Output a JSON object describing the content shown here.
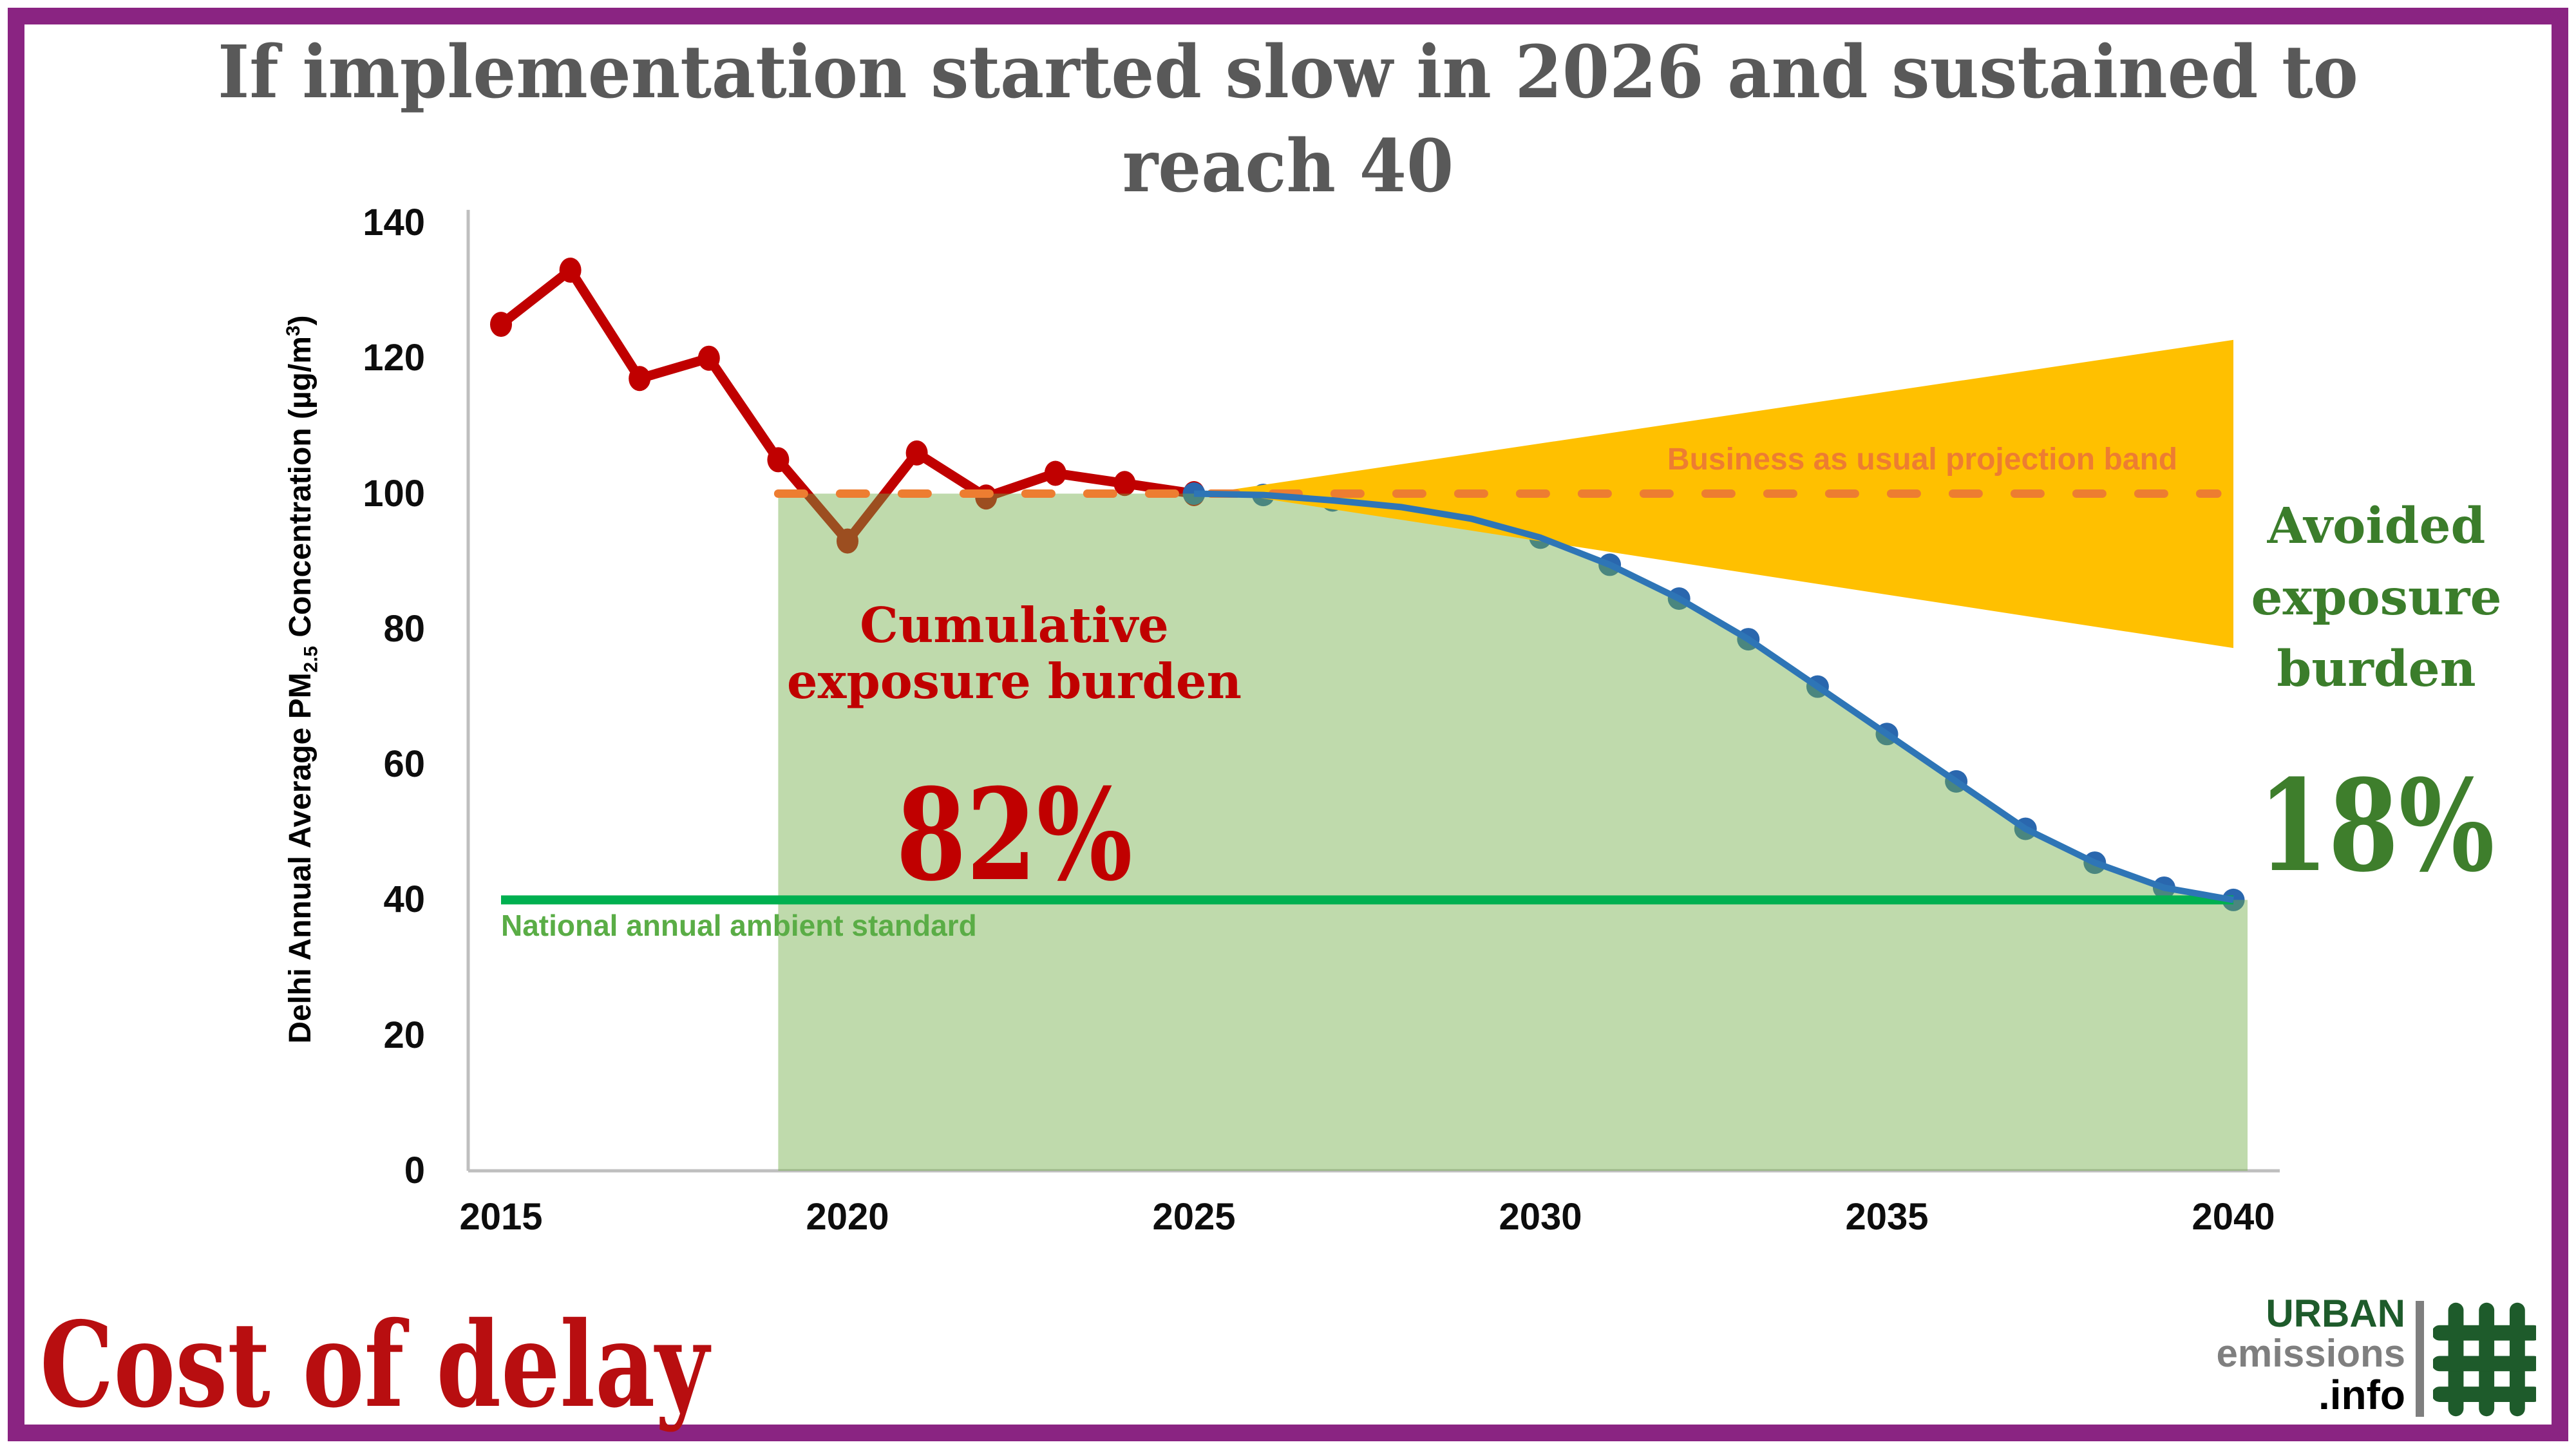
{
  "frame": {
    "border_color": "#8A2482"
  },
  "title": {
    "line1": "If implementation started slow in 2026 and sustained to",
    "line2": "reach 40",
    "color": "#595959"
  },
  "footer": {
    "caption": "Cost of delay",
    "caption_color": "#B80E10"
  },
  "logo": {
    "line1": "URBAN",
    "line2": "emissions",
    "line3": ".info",
    "text_colors": [
      "#1E5B2B",
      "#7F7F7F",
      "#000000"
    ],
    "hash_icon_color": "#1E5B2B"
  },
  "annotations": {
    "cumulative": {
      "line1": "Cumulative",
      "line2": "exposure burden",
      "value": "82%",
      "color": "#C00000"
    },
    "avoided": {
      "line1": "Avoided",
      "line2": "exposure",
      "line3": "burden",
      "value": "18%",
      "color": "#3B7D2B"
    },
    "bau": {
      "text": "Business as usual projection band",
      "color": "#ED7D31"
    },
    "standard": {
      "text": "National annual ambient standard",
      "color": "#5AAD46"
    }
  },
  "chart_data": {
    "type": "line",
    "ylabel_parts": {
      "p1": "Delhi Annual Average PM",
      "sub": "2.5",
      "p2": " Concentration (µg/m",
      "sup": "3",
      "p3": ")"
    },
    "ylim": [
      0,
      140
    ],
    "yticks": [
      0,
      20,
      40,
      60,
      80,
      100,
      120,
      140
    ],
    "xticks": [
      2015,
      2020,
      2025,
      2030,
      2035,
      2040
    ],
    "axis_color": "#BFBFBF",
    "series": [
      {
        "name": "observed",
        "color": "#C00000",
        "marker_color": "#C00000",
        "x": [
          2015,
          2016,
          2017,
          2018,
          2019,
          2020,
          2021,
          2022,
          2023,
          2024,
          2025
        ],
        "values": [
          125,
          133,
          117,
          120,
          105,
          93,
          106,
          99.5,
          103,
          101.5,
          100
        ]
      },
      {
        "name": "slow-implementation-pathway",
        "color": "#2E75B6",
        "marker_color": "#2A67AE",
        "x": [
          2025,
          2026,
          2027,
          2028,
          2029,
          2030,
          2031,
          2032,
          2033,
          2034,
          2035,
          2036,
          2037,
          2038,
          2039,
          2040
        ],
        "values": [
          100,
          99.8,
          99,
          98,
          96.3,
          93.5,
          89.5,
          84.5,
          78.5,
          71.5,
          64.5,
          57.5,
          50.5,
          45.5,
          41.8,
          40
        ]
      }
    ],
    "bau_line": {
      "value": 100,
      "color": "#ED7D31",
      "style": "dashed",
      "x_start": 2019,
      "x_end": 2040
    },
    "bau_band": {
      "color": "#FFC000",
      "apex_x": 2025.35,
      "apex_value": 100.3,
      "end_x": 2040,
      "end_top": 122.7,
      "end_bottom": 77.2
    },
    "standard_line": {
      "value": 40,
      "color": "#00B050",
      "x_start": 2015,
      "x_end": 2040
    },
    "exposure_area": {
      "color": "#70AD47",
      "opacity": 0.45,
      "x_start": 2019,
      "top_value": 100
    }
  }
}
